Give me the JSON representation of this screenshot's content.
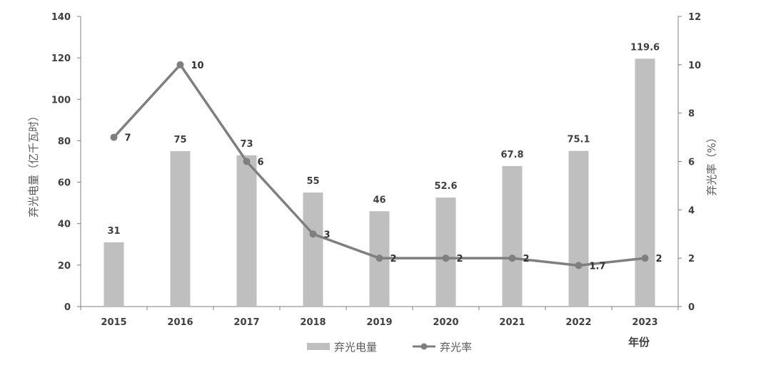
{
  "chart_data": {
    "type": "bar",
    "categories": [
      "2015",
      "2016",
      "2017",
      "2018",
      "2019",
      "2020",
      "2021",
      "2022",
      "2023"
    ],
    "series": [
      {
        "name": "弃光电量",
        "type": "bar",
        "axis": "left",
        "values": [
          31,
          75,
          73,
          55,
          46,
          52.6,
          67.8,
          75.1,
          119.6
        ],
        "labels": [
          "31",
          "75",
          "73",
          "55",
          "46",
          "52.6",
          "67.8",
          "75.1",
          "119.6"
        ]
      },
      {
        "name": "弃光率",
        "type": "line",
        "axis": "right",
        "values": [
          7,
          10,
          6,
          3,
          2,
          2,
          2,
          1.7,
          2
        ],
        "labels": [
          "7",
          "10",
          "6",
          "3",
          "2",
          "2",
          "2",
          "1.7",
          "2"
        ]
      }
    ],
    "xlabel": "年份",
    "ylabel": "弃光电量（亿千瓦时）",
    "y2label": "弃光率（%）",
    "ylim": [
      0,
      140
    ],
    "y2lim": [
      0,
      12
    ],
    "yticks": [
      "0",
      "20",
      "40",
      "60",
      "80",
      "100",
      "120",
      "140"
    ],
    "y2ticks": [
      "0",
      "2",
      "4",
      "6",
      "8",
      "10",
      "12"
    ],
    "grid": false,
    "legend": "bottom-center",
    "colors": {
      "bar": "#bfbfbf",
      "line": "#7f7f7f",
      "marker": "#7f7f7f",
      "axis": "#7f7f7f",
      "text": "#404040"
    }
  }
}
